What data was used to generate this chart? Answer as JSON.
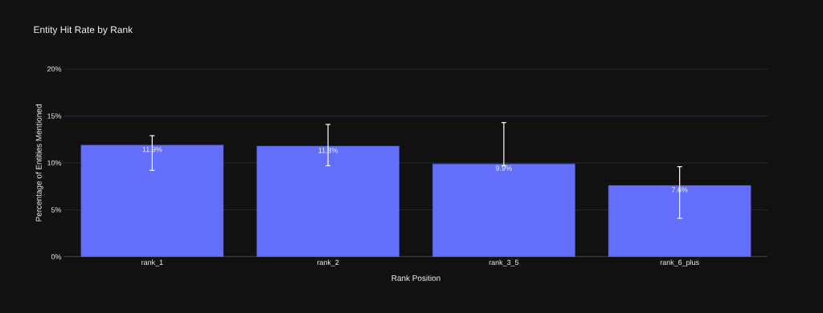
{
  "chart_data": {
    "type": "bar",
    "title": "Entity Hit Rate by Rank",
    "xlabel": "Rank Position",
    "ylabel": "Percentage of Entities Mentioned",
    "categories": [
      "rank_1",
      "rank_2",
      "rank_3_5",
      "rank_6_plus"
    ],
    "values": [
      11.9,
      11.8,
      9.9,
      7.6
    ],
    "value_labels": [
      "11.9%",
      "11.8%",
      "9.9%",
      "7.6%"
    ],
    "errors": [
      [
        9.2,
        12.9
      ],
      [
        9.7,
        14.1
      ],
      [
        9.7,
        14.3
      ],
      [
        4.1,
        9.6
      ]
    ],
    "color": "#636efa",
    "ylim": [
      0,
      20
    ],
    "yticks": [
      {
        "value": 0,
        "label": "0%"
      },
      {
        "value": 5,
        "label": "5%"
      },
      {
        "value": 10,
        "label": "10%"
      },
      {
        "value": 15,
        "label": "15%"
      },
      {
        "value": 20,
        "label": "20%"
      }
    ],
    "grid": "y"
  }
}
